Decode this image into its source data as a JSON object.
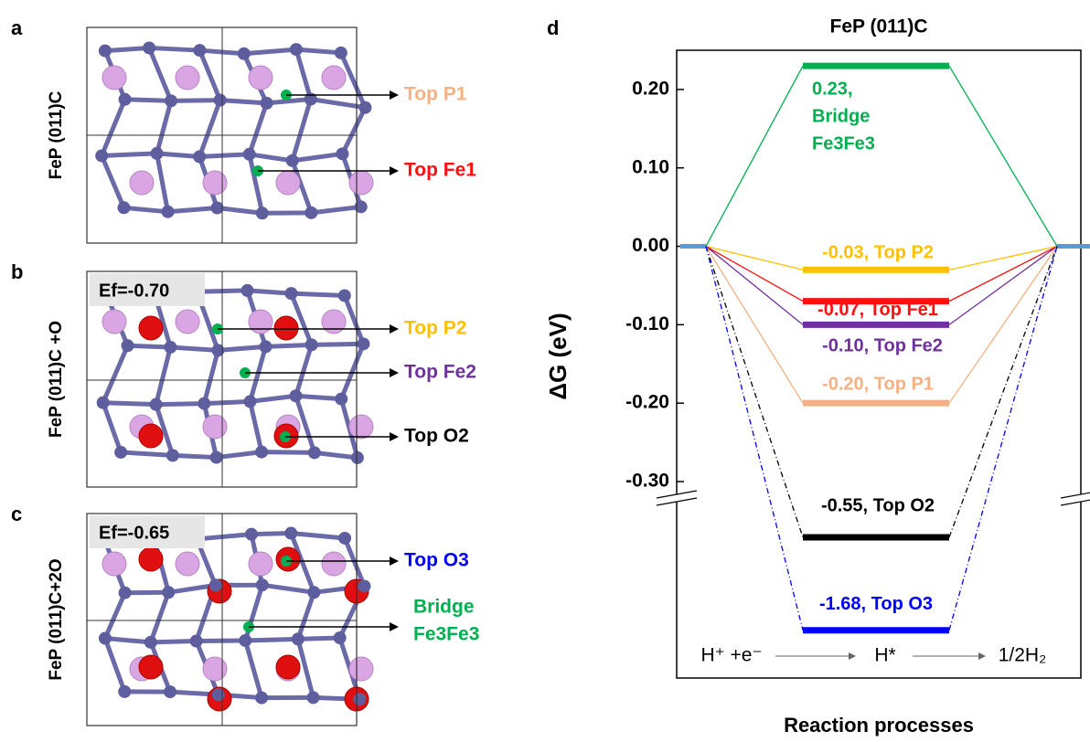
{
  "panels": [
    {
      "letter": "a",
      "label": "FeP (011)C",
      "sites": [
        {
          "label": [
            "Top P1"
          ],
          "color": "#f4b183"
        },
        {
          "label": [
            "Top Fe1"
          ],
          "color": "#ff1010"
        }
      ]
    },
    {
      "letter": "b",
      "label": "FeP (011)C +O",
      "formation_energy": "Ef=-0.70",
      "sites": [
        {
          "label": [
            "Top P2"
          ],
          "color": "#ffc000"
        },
        {
          "label": [
            "Top Fe2"
          ],
          "color": "#7030a0"
        },
        {
          "label": [
            "Top O2"
          ],
          "color": "#000000"
        }
      ]
    },
    {
      "letter": "c",
      "label": "FeP (011)C+2O",
      "formation_energy": "Ef=-0.65",
      "sites": [
        {
          "label": [
            "Top O3"
          ],
          "color": "#0000ff"
        },
        {
          "label": [
            "Bridge",
            "Fe3Fe3"
          ],
          "color": "#00b050"
        }
      ]
    }
  ],
  "chart_data": {
    "type": "energy-level",
    "panel_letter": "d",
    "title": "FeP (011)C",
    "y_label": "ΔG (eV)",
    "x_label": "Reaction processes",
    "reaction_steps": [
      "H⁺ +e⁻",
      "H*",
      "1/2H₂"
    ],
    "ylim": [
      -0.3,
      0.25
    ],
    "yticks": [
      {
        "value": 0.2,
        "label": "0.20"
      },
      {
        "value": 0.1,
        "label": "0.10"
      },
      {
        "value": 0,
        "label": "0.00"
      },
      {
        "value": -0.1,
        "label": "-0.10"
      },
      {
        "value": -0.2,
        "label": "-0.20"
      },
      {
        "value": -0.3,
        "label": "-0.30"
      }
    ],
    "levels": [
      {
        "value": 0.23,
        "label": [
          "0.23,",
          "Bridge",
          "Fe3Fe3"
        ],
        "color": "#00b050",
        "line_style": "solid"
      },
      {
        "value": -0.03,
        "label": [
          "-0.03, Top P2"
        ],
        "color": "#ffc000",
        "line_style": "solid"
      },
      {
        "value": -0.07,
        "label": [
          "-0.07, Top Fe1"
        ],
        "color": "#ff1010",
        "line_style": "solid"
      },
      {
        "value": -0.1,
        "label": [
          "-0.10, Top Fe2"
        ],
        "color": "#7030a0",
        "line_style": "solid"
      },
      {
        "value": -0.2,
        "label": [
          "-0.20, Top P1"
        ],
        "color": "#f4b183",
        "line_style": "solid"
      },
      {
        "value": -0.55,
        "label": [
          "-0.55, Top O2"
        ],
        "color": "#000000",
        "line_style": "dashdot"
      },
      {
        "value": -1.68,
        "label": [
          "-1.68, Top O3"
        ],
        "color": "#0000ff",
        "line_style": "dashdot"
      }
    ],
    "endpoint_color": "#5b9bd5"
  }
}
